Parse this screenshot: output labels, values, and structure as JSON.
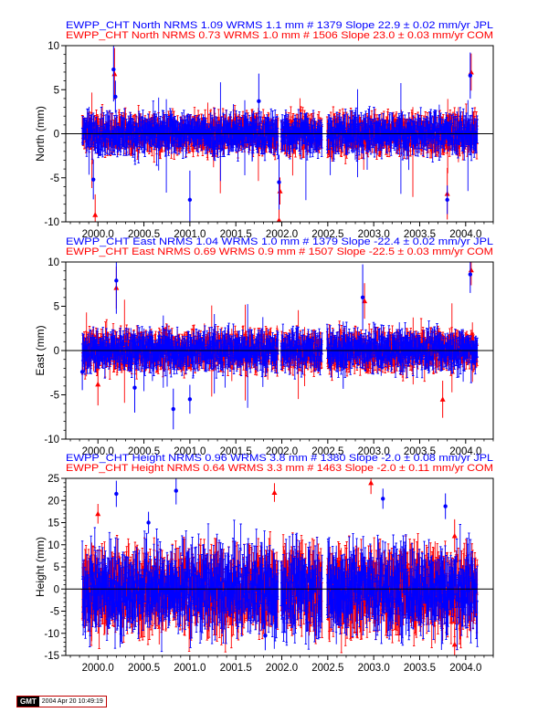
{
  "colors": {
    "jpl": "#0000ff",
    "com": "#ff0000",
    "axis": "#000000",
    "zero_line": "#000000"
  },
  "x_ticks": [
    "2000.0",
    "2000.5",
    "2001.0",
    "2001.5",
    "2002.0",
    "2002.5",
    "2003.0",
    "2003.5",
    "2004.0"
  ],
  "footer": {
    "logo": "GMT",
    "timestamp": "2004 Apr 20 10:49:19"
  },
  "chart_data": [
    {
      "type": "scatter",
      "component": "North",
      "ylabel": "North (mm)",
      "xlim": [
        1999.65,
        2004.3
      ],
      "ylim": [
        -10,
        10
      ],
      "yticks": [
        -10,
        -5,
        0,
        5,
        10
      ],
      "header_lines": [
        "EWPP_CHT North NRMS 1.09 WRMS  1.1 mm # 1379 Slope   22.9 ±  0.02 mm/yr JPL",
        "EWPP_CHT North NRMS 0.73 WRMS  1.0 mm # 1506 Slope   23.0 ±  0.03 mm/yr COM"
      ],
      "series": [
        {
          "name": "JPL",
          "color": "#0000ff",
          "marker": "circle",
          "n": 1379,
          "nrms": 1.09,
          "wrms_mm": 1.1,
          "slope_mm_yr": 22.9,
          "slope_sigma": 0.02,
          "outliers": [
            {
              "x": 2000.17,
              "y": 7.3
            },
            {
              "x": 2000.19,
              "y": 4.2
            },
            {
              "x": 2001.0,
              "y": -7.5
            },
            {
              "x": 2001.75,
              "y": 3.7
            },
            {
              "x": 2001.97,
              "y": -5.5
            },
            {
              "x": 2003.8,
              "y": -7.5
            },
            {
              "x": 2004.05,
              "y": 6.6
            },
            {
              "x": 1999.95,
              "y": -5.2
            }
          ]
        },
        {
          "name": "COM",
          "color": "#ff0000",
          "marker": "triangle",
          "n": 1506,
          "nrms": 0.73,
          "wrms_mm": 1.0,
          "slope_mm_yr": 23.0,
          "slope_sigma": 0.03,
          "outliers": [
            {
              "x": 1999.97,
              "y": -9.2
            },
            {
              "x": 2000.18,
              "y": 6.8
            },
            {
              "x": 2001.97,
              "y": -9.8
            },
            {
              "x": 2001.98,
              "y": -6.5
            },
            {
              "x": 2003.8,
              "y": -6.8
            },
            {
              "x": 2004.06,
              "y": 7.0
            }
          ]
        }
      ]
    },
    {
      "type": "scatter",
      "component": "East",
      "ylabel": "East (mm)",
      "xlim": [
        1999.65,
        2004.3
      ],
      "ylim": [
        -10,
        10
      ],
      "yticks": [
        -10,
        -5,
        0,
        5,
        10
      ],
      "header_lines": [
        "EWPP_CHT East NRMS 1.04 WRMS  1.0 mm # 1379 Slope  -22.4 ±  0.02 mm/yr JPL",
        "EWPP_CHT East NRMS 0.69 WRMS  0.9 mm # 1507 Slope  -22.5 ±  0.03 mm/yr COM"
      ],
      "series": [
        {
          "name": "JPL",
          "color": "#0000ff",
          "marker": "circle",
          "n": 1379,
          "nrms": 1.04,
          "wrms_mm": 1.0,
          "slope_mm_yr": -22.4,
          "slope_sigma": 0.02,
          "outliers": [
            {
              "x": 2000.2,
              "y": 7.9
            },
            {
              "x": 2000.4,
              "y": -4.2
            },
            {
              "x": 2000.82,
              "y": -6.6
            },
            {
              "x": 2001.0,
              "y": -5.5
            },
            {
              "x": 2002.88,
              "y": 6.0
            },
            {
              "x": 2004.05,
              "y": 8.6
            },
            {
              "x": 1999.83,
              "y": -2.4
            }
          ]
        },
        {
          "name": "COM",
          "color": "#ff0000",
          "marker": "triangle",
          "n": 1507,
          "nrms": 0.69,
          "wrms_mm": 0.9,
          "slope_mm_yr": -22.5,
          "slope_sigma": 0.03,
          "outliers": [
            {
              "x": 2000.2,
              "y": 7.1
            },
            {
              "x": 2000.0,
              "y": -3.8
            },
            {
              "x": 2002.9,
              "y": 5.6
            },
            {
              "x": 2004.06,
              "y": 9.1
            },
            {
              "x": 2003.75,
              "y": -5.5
            }
          ]
        }
      ]
    },
    {
      "type": "scatter",
      "component": "Height",
      "ylabel": "Height (mm)",
      "xlim": [
        1999.65,
        2004.3
      ],
      "ylim": [
        -15,
        25
      ],
      "yticks": [
        -15,
        -10,
        -5,
        0,
        5,
        10,
        15,
        20,
        25
      ],
      "header_lines": [
        "EWPP_CHT Height NRMS 0.96 WRMS  3.8 mm # 1380 Slope   -2.0 ±  0.08 mm/yr JPL",
        "EWPP_CHT Height NRMS 0.64 WRMS  3.3 mm # 1463 Slope   -2.0 ±  0.11 mm/yr COM"
      ],
      "series": [
        {
          "name": "JPL",
          "color": "#0000ff",
          "marker": "circle",
          "n": 1380,
          "nrms": 0.96,
          "wrms_mm": 3.8,
          "slope_mm_yr": -2.0,
          "slope_sigma": 0.08,
          "outliers": [
            {
              "x": 2000.2,
              "y": 21.5
            },
            {
              "x": 2000.85,
              "y": 22.2
            },
            {
              "x": 2000.55,
              "y": 15.0
            },
            {
              "x": 2003.1,
              "y": 20.4
            },
            {
              "x": 2003.78,
              "y": 18.7
            },
            {
              "x": 2001.82,
              "y": -10.5
            }
          ]
        },
        {
          "name": "COM",
          "color": "#ff0000",
          "marker": "triangle",
          "n": 1463,
          "nrms": 0.64,
          "wrms_mm": 3.3,
          "slope_mm_yr": -2.0,
          "slope_sigma": 0.11,
          "outliers": [
            {
              "x": 2001.92,
              "y": 21.8
            },
            {
              "x": 2002.97,
              "y": 24.0
            },
            {
              "x": 2000.0,
              "y": 17.0
            },
            {
              "x": 2003.88,
              "y": -12.5
            },
            {
              "x": 2003.88,
              "y": 12.0
            }
          ]
        }
      ]
    }
  ]
}
